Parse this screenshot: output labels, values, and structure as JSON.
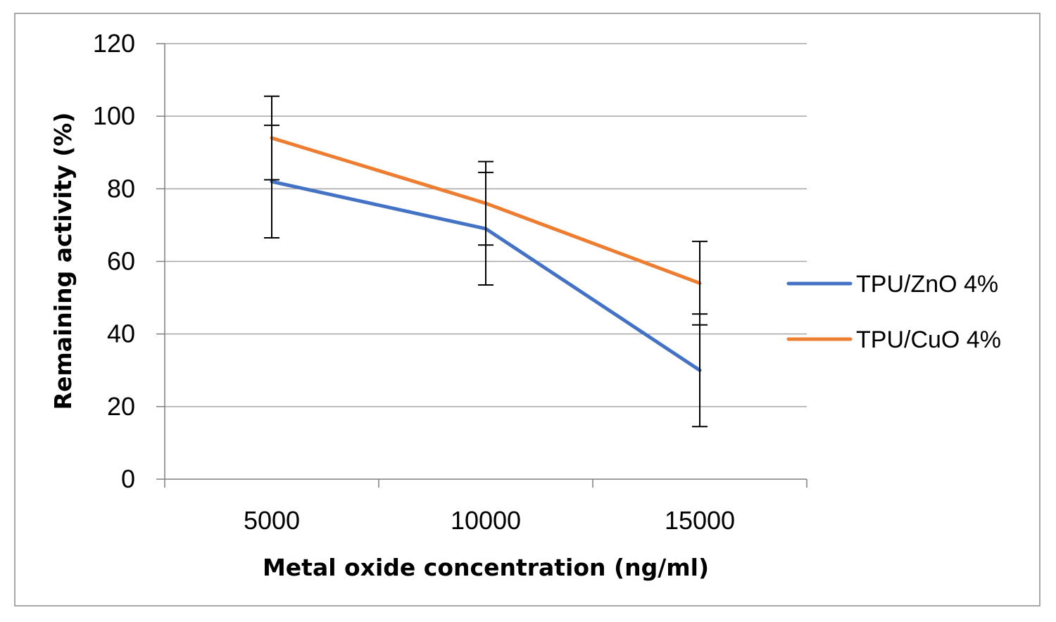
{
  "chart_data": {
    "type": "line",
    "title": "",
    "xlabel": "Metal oxide concentration (ng/ml)",
    "ylabel": "Remaining activity (%)",
    "categories": [
      "5000",
      "10000",
      "15000"
    ],
    "ylim": [
      0,
      120
    ],
    "yticks": [
      0,
      20,
      40,
      60,
      80,
      100,
      120
    ],
    "grid": true,
    "legend_position": "right",
    "series": [
      {
        "name": "TPU/ZnO 4%",
        "color": "#4472c4",
        "values": [
          82,
          69,
          30
        ],
        "error": [
          15.5,
          15.5,
          15.5
        ]
      },
      {
        "name": "TPU/CuO 4%",
        "color": "#ed7d31",
        "values": [
          94,
          76,
          54
        ],
        "error": [
          11.5,
          11.5,
          11.5
        ]
      }
    ]
  }
}
